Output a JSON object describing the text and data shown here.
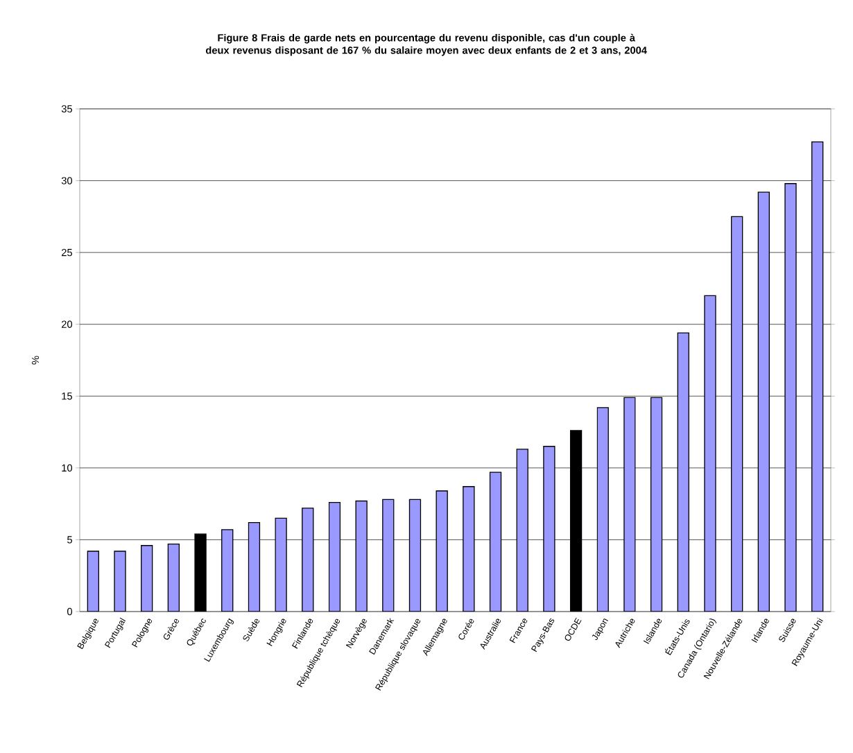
{
  "chart_data": {
    "type": "bar",
    "title": "Figure 8 Frais de garde nets en pourcentage du revenu disponible, cas d'un couple à deux revenus disposant de 167 % du salaire moyen avec deux enfants de 2 et 3 ans, 2004",
    "ylabel": "%",
    "categories": [
      "Belgique",
      "Portugal",
      "Pologne",
      "Grèce",
      "Québec",
      "Luxembourg",
      "Suède",
      "Hongrie",
      "Finlande",
      "République tchèque",
      "Norvège",
      "Danemark",
      "République slovaque",
      "Allemagne",
      "Corée",
      "Australie",
      "France",
      "Pays-Bas",
      "OCDE",
      "Japon",
      "Autriche",
      "Islande",
      "États-Unis",
      "Canada (Ontario)",
      "Nouvelle-Zélande",
      "Irlande",
      "Suisse",
      "Royaume-Uni"
    ],
    "values": [
      4.2,
      4.2,
      4.6,
      4.7,
      5.4,
      5.7,
      6.2,
      6.5,
      7.2,
      7.6,
      7.7,
      7.8,
      7.8,
      8.4,
      8.7,
      9.7,
      11.3,
      11.5,
      12.6,
      14.2,
      14.9,
      14.9,
      19.4,
      22.0,
      27.5,
      29.2,
      29.8,
      32.7
    ],
    "colors": [
      "#9999ff",
      "#9999ff",
      "#9999ff",
      "#9999ff",
      "#000000",
      "#9999ff",
      "#9999ff",
      "#9999ff",
      "#9999ff",
      "#9999ff",
      "#9999ff",
      "#9999ff",
      "#9999ff",
      "#9999ff",
      "#9999ff",
      "#9999ff",
      "#9999ff",
      "#9999ff",
      "#000000",
      "#9999ff",
      "#9999ff",
      "#9999ff",
      "#9999ff",
      "#9999ff",
      "#9999ff",
      "#9999ff",
      "#9999ff",
      "#9999ff"
    ],
    "ylim": [
      0,
      35
    ],
    "yticks": [
      0,
      5,
      10,
      15,
      20,
      25,
      30,
      35
    ],
    "grid": "y"
  }
}
